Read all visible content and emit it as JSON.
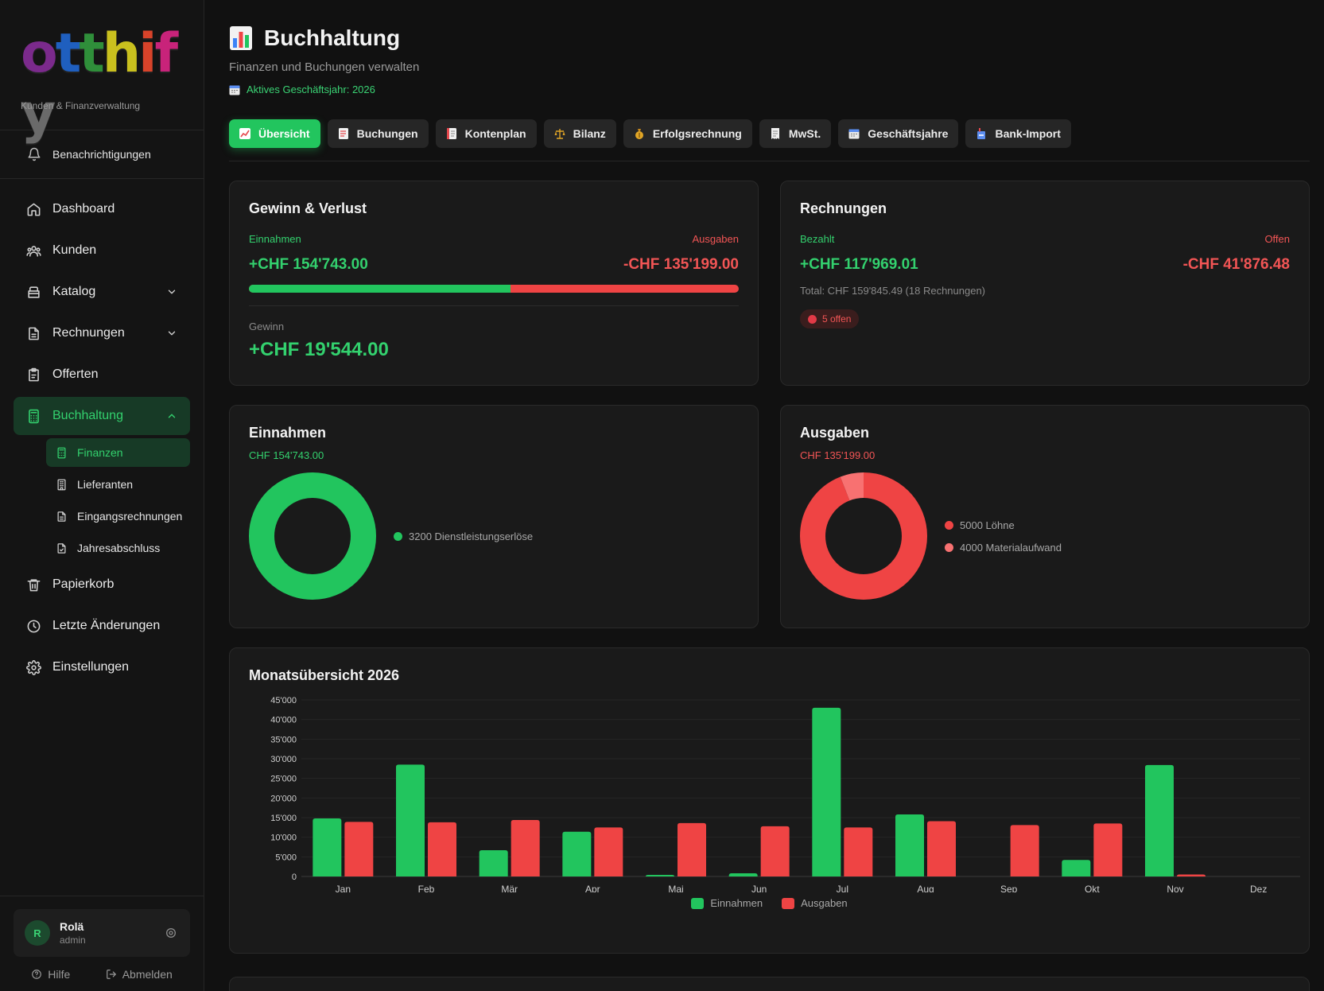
{
  "sidebar": {
    "logo_letters": [
      {
        "char": "o",
        "color": "#7b2a8c"
      },
      {
        "char": "t",
        "color": "#1f5fbf"
      },
      {
        "char": "t",
        "color": "#2f8f3a"
      },
      {
        "char": "h",
        "color": "#c9c01e"
      },
      {
        "char": "i",
        "color": "#d8432a"
      },
      {
        "char": "f",
        "color": "#c8237a"
      },
      {
        "char": "y",
        "color": "#6a6a6a"
      }
    ],
    "tagline": "Kunden & Finanzverwaltung",
    "notifications_label": "Benachrichtigungen",
    "items": [
      {
        "label": "Dashboard",
        "icon": "home-icon"
      },
      {
        "label": "Kunden",
        "icon": "users-icon"
      },
      {
        "label": "Katalog",
        "icon": "box-icon"
      },
      {
        "label": "Rechnungen",
        "icon": "file-icon"
      },
      {
        "label": "Offerten",
        "icon": "clipboard-icon"
      },
      {
        "label": "Buchhaltung",
        "icon": "calculator-icon"
      },
      {
        "label": "Papierkorb",
        "icon": "trash-icon"
      },
      {
        "label": "Letzte Änderungen",
        "icon": "clock-icon"
      },
      {
        "label": "Einstellungen",
        "icon": "gear-icon"
      }
    ],
    "sub_items": [
      {
        "label": "Finanzen"
      },
      {
        "label": "Lieferanten"
      },
      {
        "label": "Eingangsrechnungen"
      },
      {
        "label": "Jahresabschluss"
      }
    ],
    "user": {
      "initial": "R",
      "name": "Rolä",
      "role": "admin"
    },
    "help_label": "Hilfe",
    "logout_label": "Abmelden"
  },
  "header": {
    "title": "Buchhaltung",
    "subtitle": "Finanzen und Buchungen verwalten",
    "fiscal_year": "Aktives Geschäftsjahr: 2026"
  },
  "tabs": [
    {
      "label": "Übersicht",
      "icon": "chart-up-icon"
    },
    {
      "label": "Buchungen",
      "icon": "memo-icon"
    },
    {
      "label": "Kontenplan",
      "icon": "ledger-icon"
    },
    {
      "label": "Bilanz",
      "icon": "scales-icon"
    },
    {
      "label": "Erfolgsrechnung",
      "icon": "money-bag-icon"
    },
    {
      "label": "MwSt.",
      "icon": "receipt-icon"
    },
    {
      "label": "Geschäftsjahre",
      "icon": "calendar-icon"
    },
    {
      "label": "Bank-Import",
      "icon": "bank-icon"
    }
  ],
  "pnl": {
    "title": "Gewinn & Verlust",
    "income_label": "Einnahmen",
    "expense_label": "Ausgaben",
    "income_value": "+CHF 154'743.00",
    "expense_value": "-CHF 135'199.00",
    "income_share": 0.534,
    "profit_label": "Gewinn",
    "profit_value": "+CHF 19'544.00"
  },
  "invoices": {
    "title": "Rechnungen",
    "paid_label": "Bezahlt",
    "open_label": "Offen",
    "paid_value": "+CHF 117'969.01",
    "open_value": "-CHF 41'876.48",
    "total": "Total: CHF 159'845.49 (18 Rechnungen)",
    "badge": "5 offen"
  },
  "income_donut": {
    "title": "Einnahmen",
    "amount": "CHF 154'743.00",
    "slices": [
      {
        "label": "3200 Dienstleistungserlöse",
        "share": 1.0,
        "color": "#22c55e"
      }
    ]
  },
  "expense_donut": {
    "title": "Ausgaben",
    "amount": "CHF 135'199.00",
    "slices": [
      {
        "label": "5000 Löhne",
        "share": 0.94,
        "color": "#ef4444"
      },
      {
        "label": "4000 Materialaufwand",
        "share": 0.06,
        "color": "#f87171"
      }
    ]
  },
  "chart_data": {
    "type": "bar",
    "title": "Monatsübersicht 2026",
    "categories": [
      "Jan",
      "Feb",
      "Mär",
      "Apr",
      "Mai",
      "Jun",
      "Jul",
      "Aug",
      "Sep",
      "Okt",
      "Nov",
      "Dez"
    ],
    "series": [
      {
        "name": "Einnahmen",
        "color": "#22c55e",
        "values": [
          14800,
          28500,
          6700,
          11400,
          400,
          800,
          43000,
          15800,
          0,
          4200,
          28400,
          0
        ]
      },
      {
        "name": "Ausgaben",
        "color": "#ef4444",
        "values": [
          13900,
          13800,
          14400,
          12500,
          13600,
          12800,
          12500,
          14100,
          13100,
          13500,
          500,
          0
        ]
      }
    ],
    "ylim": [
      0,
      45000
    ],
    "yticks": [
      0,
      5000,
      10000,
      15000,
      20000,
      25000,
      30000,
      35000,
      40000,
      45000
    ],
    "ytick_labels": [
      "0",
      "5'000",
      "10'000",
      "15'000",
      "20'000",
      "25'000",
      "30'000",
      "35'000",
      "40'000",
      "45'000"
    ],
    "grid": true,
    "legend": "bottom"
  }
}
